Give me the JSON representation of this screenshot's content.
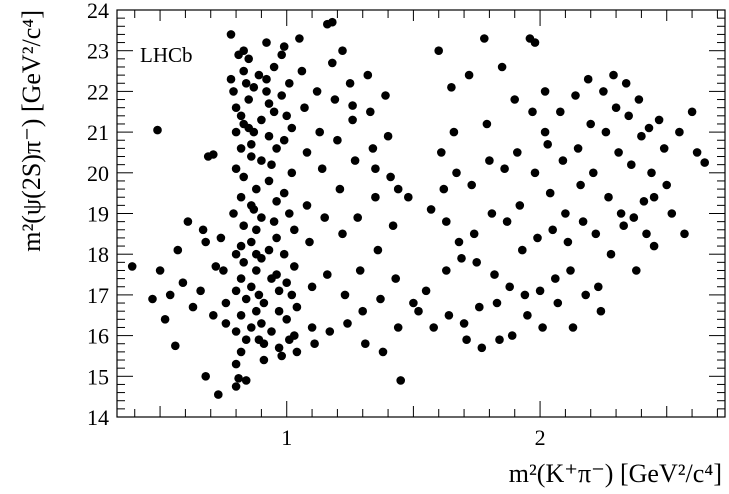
{
  "chart_data": {
    "type": "scatter",
    "xlabel": "m²(K⁺π⁻) [GeV²/c⁴]",
    "ylabel": "m²(ψ(2S)π⁻) [GeV²/c⁴]",
    "annotation": "LHCb",
    "xlim": [
      0.33,
      2.73
    ],
    "ylim": [
      14,
      24
    ],
    "xticks": [
      1,
      2
    ],
    "yticks": [
      14,
      15,
      16,
      17,
      18,
      19,
      20,
      21,
      22,
      23,
      24
    ],
    "legend": "none",
    "grid": false,
    "marker_color": "#000000",
    "points": [
      [
        0.39,
        17.7
      ],
      [
        0.47,
        16.9
      ],
      [
        0.49,
        21.05
      ],
      [
        0.5,
        17.6
      ],
      [
        0.52,
        16.4
      ],
      [
        0.54,
        17.0
      ],
      [
        0.56,
        15.75
      ],
      [
        0.57,
        18.1
      ],
      [
        0.59,
        17.3
      ],
      [
        0.61,
        18.8
      ],
      [
        0.63,
        16.7
      ],
      [
        0.66,
        17.1
      ],
      [
        0.67,
        18.6
      ],
      [
        0.68,
        18.3
      ],
      [
        0.68,
        15.0
      ],
      [
        0.69,
        20.4
      ],
      [
        0.71,
        20.45
      ],
      [
        0.71,
        16.5
      ],
      [
        0.72,
        17.7
      ],
      [
        0.73,
        14.55
      ],
      [
        0.74,
        18.4
      ],
      [
        0.75,
        17.6
      ],
      [
        0.76,
        16.8
      ],
      [
        0.76,
        16.3
      ],
      [
        0.78,
        23.4
      ],
      [
        0.78,
        22.3
      ],
      [
        0.79,
        22.0
      ],
      [
        0.8,
        21.6
      ],
      [
        0.8,
        21.0
      ],
      [
        0.8,
        20.1
      ],
      [
        0.79,
        19.0
      ],
      [
        0.8,
        18.0
      ],
      [
        0.8,
        17.1
      ],
      [
        0.8,
        16.1
      ],
      [
        0.8,
        15.3
      ],
      [
        0.8,
        14.75
      ],
      [
        0.81,
        14.95
      ],
      [
        0.81,
        22.9
      ],
      [
        0.82,
        21.4
      ],
      [
        0.82,
        20.6
      ],
      [
        0.82,
        19.4
      ],
      [
        0.82,
        18.2
      ],
      [
        0.82,
        17.4
      ],
      [
        0.82,
        16.5
      ],
      [
        0.82,
        15.6
      ],
      [
        0.83,
        22.5
      ],
      [
        0.83,
        21.2
      ],
      [
        0.83,
        19.9
      ],
      [
        0.83,
        18.7
      ],
      [
        0.83,
        17.8
      ],
      [
        0.84,
        16.9
      ],
      [
        0.84,
        15.9
      ],
      [
        0.84,
        14.9
      ],
      [
        0.85,
        22.8
      ],
      [
        0.85,
        21.8
      ],
      [
        0.86,
        20.4
      ],
      [
        0.86,
        19.2
      ],
      [
        0.86,
        18.3
      ],
      [
        0.86,
        17.2
      ],
      [
        0.86,
        16.2
      ],
      [
        0.87,
        22.1
      ],
      [
        0.87,
        21.0
      ],
      [
        0.88,
        19.6
      ],
      [
        0.88,
        18.6
      ],
      [
        0.88,
        17.6
      ],
      [
        0.88,
        16.6
      ],
      [
        0.89,
        15.9
      ],
      [
        0.89,
        22.4
      ],
      [
        0.9,
        21.3
      ],
      [
        0.9,
        20.3
      ],
      [
        0.9,
        18.9
      ],
      [
        0.9,
        17.9
      ],
      [
        0.91,
        16.8
      ],
      [
        0.91,
        15.8
      ],
      [
        0.92,
        23.2
      ],
      [
        0.92,
        22.0
      ],
      [
        0.93,
        20.9
      ],
      [
        0.93,
        19.8
      ],
      [
        0.93,
        18.1
      ],
      [
        0.94,
        17.4
      ],
      [
        0.94,
        16.1
      ],
      [
        0.95,
        22.6
      ],
      [
        0.95,
        21.5
      ],
      [
        0.96,
        20.6
      ],
      [
        0.96,
        19.3
      ],
      [
        0.96,
        18.4
      ],
      [
        0.97,
        17.1
      ],
      [
        0.97,
        15.7
      ],
      [
        0.98,
        22.9
      ],
      [
        0.98,
        21.9
      ],
      [
        0.99,
        20.8
      ],
      [
        0.99,
        19.5
      ],
      [
        0.99,
        18.0
      ],
      [
        1.0,
        17.3
      ],
      [
        1.0,
        16.4
      ],
      [
        1.01,
        15.9
      ],
      [
        1.01,
        22.2
      ],
      [
        1.02,
        21.1
      ],
      [
        1.02,
        20.0
      ],
      [
        1.03,
        18.6
      ],
      [
        1.03,
        17.7
      ],
      [
        1.04,
        16.7
      ],
      [
        1.04,
        15.6
      ],
      [
        0.83,
        23.0
      ],
      [
        0.84,
        22.2
      ],
      [
        0.85,
        21.1
      ],
      [
        0.86,
        20.7
      ],
      [
        0.87,
        19.1
      ],
      [
        0.88,
        18.0
      ],
      [
        0.89,
        17.0
      ],
      [
        0.9,
        16.3
      ],
      [
        0.91,
        15.4
      ],
      [
        0.92,
        22.3
      ],
      [
        0.93,
        21.7
      ],
      [
        0.94,
        20.2
      ],
      [
        0.95,
        18.8
      ],
      [
        0.96,
        17.5
      ],
      [
        0.97,
        16.6
      ],
      [
        0.98,
        15.5
      ],
      [
        0.99,
        23.1
      ],
      [
        1.0,
        21.4
      ],
      [
        1.01,
        19.0
      ],
      [
        1.02,
        17.0
      ],
      [
        1.03,
        16.0
      ],
      [
        1.05,
        23.3
      ],
      [
        1.06,
        22.5
      ],
      [
        1.07,
        21.6
      ],
      [
        1.08,
        20.5
      ],
      [
        1.08,
        19.2
      ],
      [
        1.09,
        18.3
      ],
      [
        1.1,
        17.2
      ],
      [
        1.1,
        16.2
      ],
      [
        1.11,
        15.8
      ],
      [
        1.12,
        22.0
      ],
      [
        1.13,
        21.0
      ],
      [
        1.14,
        20.1
      ],
      [
        1.15,
        18.9
      ],
      [
        1.16,
        17.5
      ],
      [
        1.17,
        16.1
      ],
      [
        1.18,
        23.7
      ],
      [
        1.18,
        22.7
      ],
      [
        1.19,
        21.8
      ],
      [
        1.2,
        20.8
      ],
      [
        1.21,
        19.6
      ],
      [
        1.22,
        18.5
      ],
      [
        1.23,
        17.0
      ],
      [
        1.24,
        16.3
      ],
      [
        1.25,
        22.2
      ],
      [
        1.26,
        21.3
      ],
      [
        1.27,
        20.3
      ],
      [
        1.28,
        18.9
      ],
      [
        1.29,
        17.6
      ],
      [
        1.3,
        16.6
      ],
      [
        1.31,
        15.8
      ],
      [
        1.32,
        22.4
      ],
      [
        1.33,
        21.5
      ],
      [
        1.34,
        20.6
      ],
      [
        1.35,
        19.4
      ],
      [
        1.36,
        18.1
      ],
      [
        1.37,
        16.9
      ],
      [
        1.38,
        15.6
      ],
      [
        1.39,
        21.9
      ],
      [
        1.4,
        20.9
      ],
      [
        1.41,
        19.9
      ],
      [
        1.42,
        18.7
      ],
      [
        1.43,
        17.4
      ],
      [
        1.44,
        16.2
      ],
      [
        1.45,
        14.9
      ],
      [
        1.22,
        23.0
      ],
      [
        1.16,
        23.65
      ],
      [
        1.26,
        21.65
      ],
      [
        1.35,
        20.1
      ],
      [
        1.44,
        19.6
      ],
      [
        1.48,
        19.4
      ],
      [
        1.5,
        16.8
      ],
      [
        1.52,
        16.6
      ],
      [
        1.55,
        17.1
      ],
      [
        1.57,
        19.1
      ],
      [
        1.58,
        16.2
      ],
      [
        1.6,
        23.0
      ],
      [
        1.61,
        20.5
      ],
      [
        1.62,
        19.6
      ],
      [
        1.63,
        18.8
      ],
      [
        1.63,
        17.6
      ],
      [
        1.64,
        16.5
      ],
      [
        1.65,
        22.1
      ],
      [
        1.66,
        21.0
      ],
      [
        1.67,
        20.0
      ],
      [
        1.68,
        18.3
      ],
      [
        1.69,
        17.9
      ],
      [
        1.7,
        16.3
      ],
      [
        1.71,
        15.9
      ],
      [
        1.72,
        22.4
      ],
      [
        1.73,
        19.7
      ],
      [
        1.74,
        18.5
      ],
      [
        1.75,
        17.8
      ],
      [
        1.76,
        16.7
      ],
      [
        1.77,
        15.7
      ],
      [
        1.78,
        23.3
      ],
      [
        1.79,
        21.2
      ],
      [
        1.8,
        20.3
      ],
      [
        1.81,
        19.0
      ],
      [
        1.82,
        17.5
      ],
      [
        1.83,
        16.8
      ],
      [
        1.84,
        15.9
      ],
      [
        1.85,
        22.6
      ],
      [
        1.86,
        20.1
      ],
      [
        1.87,
        18.8
      ],
      [
        1.88,
        17.2
      ],
      [
        1.89,
        16.0
      ],
      [
        1.9,
        21.8
      ],
      [
        1.91,
        20.5
      ],
      [
        1.92,
        19.2
      ],
      [
        1.93,
        18.1
      ],
      [
        1.94,
        17.0
      ],
      [
        1.95,
        16.5
      ],
      [
        1.96,
        23.3
      ],
      [
        1.97,
        21.5
      ],
      [
        1.98,
        20.0
      ],
      [
        1.99,
        18.4
      ],
      [
        2.0,
        17.1
      ],
      [
        2.01,
        16.2
      ],
      [
        2.02,
        22.0
      ],
      [
        2.03,
        20.7
      ],
      [
        2.04,
        19.5
      ],
      [
        2.05,
        18.6
      ],
      [
        2.06,
        17.4
      ],
      [
        2.07,
        16.8
      ],
      [
        1.98,
        23.2
      ],
      [
        2.02,
        21.0
      ],
      [
        2.08,
        21.5
      ],
      [
        2.09,
        20.3
      ],
      [
        2.1,
        19.0
      ],
      [
        2.11,
        18.3
      ],
      [
        2.12,
        17.6
      ],
      [
        2.13,
        16.2
      ],
      [
        2.14,
        21.9
      ],
      [
        2.15,
        20.6
      ],
      [
        2.16,
        19.7
      ],
      [
        2.17,
        18.8
      ],
      [
        2.18,
        17.0
      ],
      [
        2.19,
        22.3
      ],
      [
        2.2,
        21.2
      ],
      [
        2.21,
        20.0
      ],
      [
        2.22,
        18.5
      ],
      [
        2.23,
        17.2
      ],
      [
        2.24,
        16.6
      ],
      [
        2.25,
        22.0
      ],
      [
        2.26,
        21.0
      ],
      [
        2.27,
        19.4
      ],
      [
        2.28,
        18.0
      ],
      [
        2.29,
        22.4
      ],
      [
        2.3,
        21.6
      ],
      [
        2.31,
        20.5
      ],
      [
        2.32,
        19.0
      ],
      [
        2.33,
        18.7
      ],
      [
        2.34,
        22.2
      ],
      [
        2.35,
        21.4
      ],
      [
        2.36,
        20.2
      ],
      [
        2.37,
        18.9
      ],
      [
        2.38,
        17.6
      ],
      [
        2.39,
        21.8
      ],
      [
        2.4,
        20.9
      ],
      [
        2.41,
        19.3
      ],
      [
        2.42,
        18.5
      ],
      [
        2.43,
        21.1
      ],
      [
        2.44,
        20.0
      ],
      [
        2.45,
        18.2
      ],
      [
        2.47,
        21.3
      ],
      [
        2.49,
        20.6
      ],
      [
        2.5,
        19.7
      ],
      [
        2.52,
        19.0
      ],
      [
        2.55,
        21.0
      ],
      [
        2.57,
        18.5
      ],
      [
        2.6,
        21.5
      ],
      [
        2.62,
        20.5
      ],
      [
        2.65,
        20.25
      ],
      [
        2.45,
        19.4
      ]
    ]
  }
}
